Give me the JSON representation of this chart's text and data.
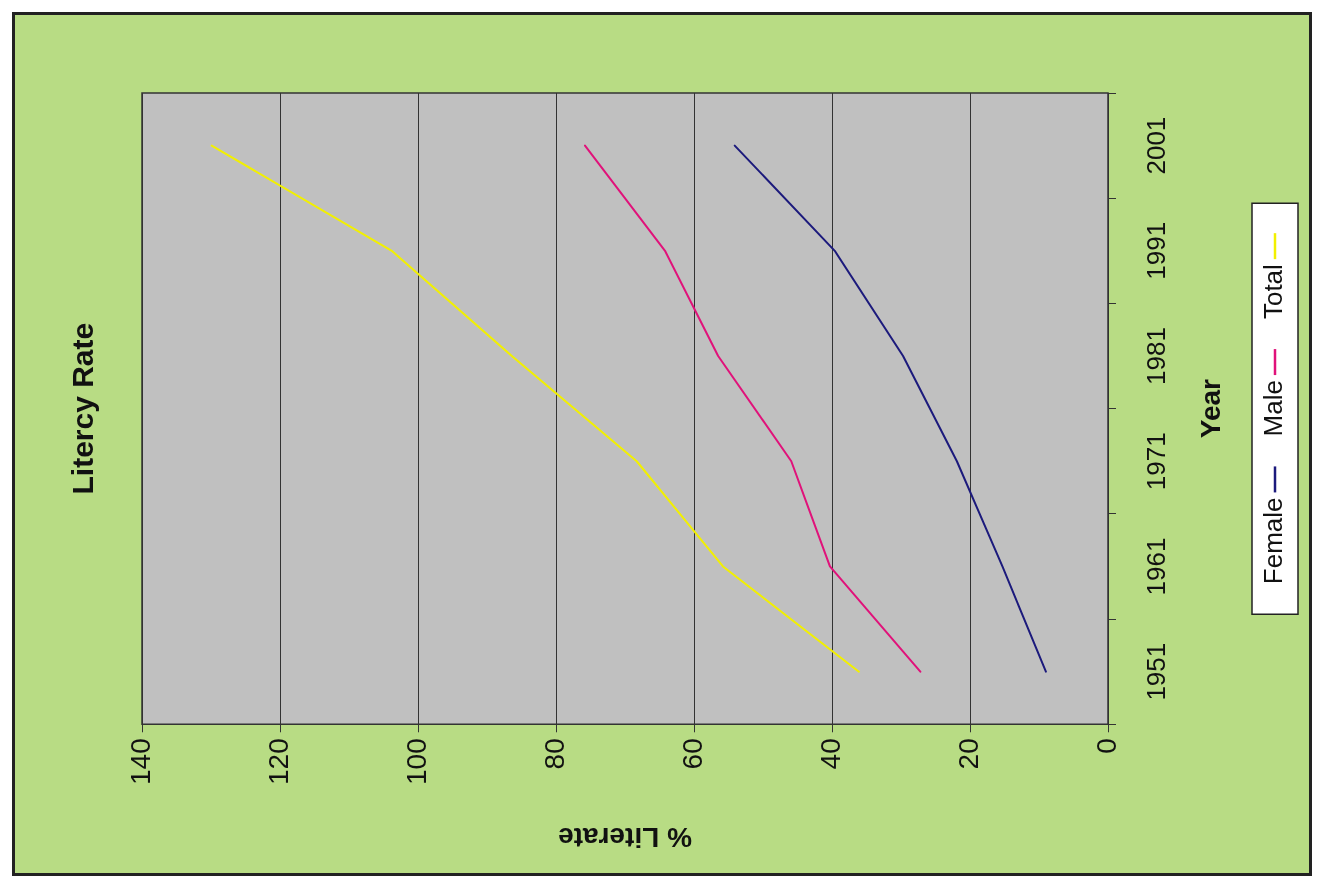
{
  "chart_data": {
    "type": "line",
    "orientation": "horizontal",
    "title": "Litercy Rate",
    "xlabel": "% Literate",
    "ylabel": "Year",
    "categories": [
      "2001",
      "1991",
      "1981",
      "1971",
      "1961",
      "1951"
    ],
    "series": [
      {
        "name": "Female",
        "color": "#1c1a7c",
        "values": [
          54.1,
          39.6,
          29.7,
          21.9,
          15.3,
          9.0
        ]
      },
      {
        "name": "Male",
        "color": "#e0127a",
        "values": [
          75.8,
          64.2,
          56.5,
          45.9,
          40.3,
          27.2
        ]
      },
      {
        "name": "Total",
        "color": "#f2f000",
        "values": [
          129.9,
          103.8,
          86.4,
          68.3,
          55.8,
          36.1
        ]
      }
    ],
    "xlim": [
      140,
      0
    ],
    "xticks": [
      140,
      120,
      100,
      80,
      60,
      40,
      20,
      0
    ],
    "grid": "x",
    "legend": "right",
    "marker": "none",
    "line_style": "solid"
  }
}
